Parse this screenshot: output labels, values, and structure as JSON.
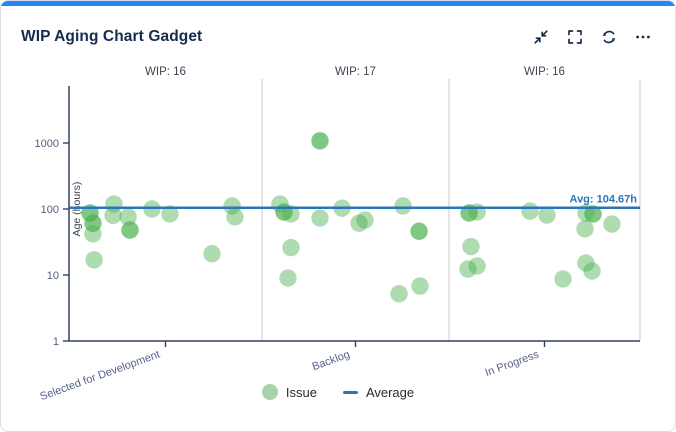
{
  "window": {
    "title": "WIP Aging Chart Gadget"
  },
  "toolbar": {
    "icons": [
      {
        "name": "collapse-icon"
      },
      {
        "name": "fullscreen-icon"
      },
      {
        "name": "refresh-icon"
      },
      {
        "name": "more-icon"
      }
    ]
  },
  "colors": {
    "accent_top_bar": "#2684ff",
    "title_text": "#172b4d",
    "axis": "#33415e",
    "tick_label": "#53607c",
    "wip_label": "#3f4550",
    "divider": "#cbcbcb",
    "issue_point": "#4caf50",
    "average_line": "#2a76b9"
  },
  "chart_data": {
    "type": "scatter",
    "y_scale": "log",
    "ylabel": "Age (hours)",
    "y_ticks": [
      1000,
      100,
      10,
      1
    ],
    "ylim": [
      1,
      7000
    ],
    "grid": false,
    "point_color": "#4caf50",
    "point_opacity": 0.45,
    "average": {
      "value": 104.67,
      "label": "Avg: 104.67h",
      "color": "#2a76b9"
    },
    "legend": {
      "position": "bottom",
      "items": [
        {
          "label": "Issue",
          "marker": "circle",
          "color": "#a9d4ab"
        },
        {
          "label": "Average",
          "marker": "line",
          "color": "#2a76b9"
        }
      ]
    },
    "columns": [
      {
        "label": "Selected for Development",
        "wip": 16,
        "wip_label": "WIP: 16",
        "points": [
          {
            "fx": 0.109,
            "age": 87,
            "n": 2
          },
          {
            "fx": 0.124,
            "age": 61,
            "n": 2
          },
          {
            "fx": 0.124,
            "age": 42
          },
          {
            "fx": 0.13,
            "age": 17
          },
          {
            "fx": 0.233,
            "age": 119
          },
          {
            "fx": 0.228,
            "age": 80
          },
          {
            "fx": 0.306,
            "age": 76
          },
          {
            "fx": 0.316,
            "age": 48,
            "n": 2
          },
          {
            "fx": 0.43,
            "age": 100
          },
          {
            "fx": 0.523,
            "age": 84
          },
          {
            "fx": 0.741,
            "age": 21
          },
          {
            "fx": 0.845,
            "age": 111
          },
          {
            "fx": 0.86,
            "age": 76
          }
        ]
      },
      {
        "label": "Backlog",
        "wip": 17,
        "wip_label": "WIP: 17",
        "points": [
          {
            "fx": 0.31,
            "age": 1080,
            "n": 2
          },
          {
            "fx": 0.096,
            "age": 119
          },
          {
            "fx": 0.118,
            "age": 90,
            "n": 2
          },
          {
            "fx": 0.155,
            "age": 84
          },
          {
            "fx": 0.31,
            "age": 73
          },
          {
            "fx": 0.428,
            "age": 103
          },
          {
            "fx": 0.519,
            "age": 61
          },
          {
            "fx": 0.551,
            "age": 68
          },
          {
            "fx": 0.754,
            "age": 111
          },
          {
            "fx": 0.84,
            "age": 46,
            "n": 2
          },
          {
            "fx": 0.155,
            "age": 26
          },
          {
            "fx": 0.139,
            "age": 9
          },
          {
            "fx": 0.733,
            "age": 5.2
          },
          {
            "fx": 0.845,
            "age": 6.8
          }
        ]
      },
      {
        "label": "In Progress",
        "wip": 16,
        "wip_label": "WIP: 16",
        "points": [
          {
            "fx": 0.105,
            "age": 87,
            "n": 2
          },
          {
            "fx": 0.147,
            "age": 90
          },
          {
            "fx": 0.424,
            "age": 93
          },
          {
            "fx": 0.513,
            "age": 81
          },
          {
            "fx": 0.717,
            "age": 87
          },
          {
            "fx": 0.754,
            "age": 84,
            "n": 2
          },
          {
            "fx": 0.712,
            "age": 50
          },
          {
            "fx": 0.853,
            "age": 59
          },
          {
            "fx": 0.115,
            "age": 27
          },
          {
            "fx": 0.099,
            "age": 12.3
          },
          {
            "fx": 0.147,
            "age": 13.7
          },
          {
            "fx": 0.717,
            "age": 15.2
          },
          {
            "fx": 0.749,
            "age": 11.5
          },
          {
            "fx": 0.597,
            "age": 8.7
          }
        ]
      }
    ]
  }
}
